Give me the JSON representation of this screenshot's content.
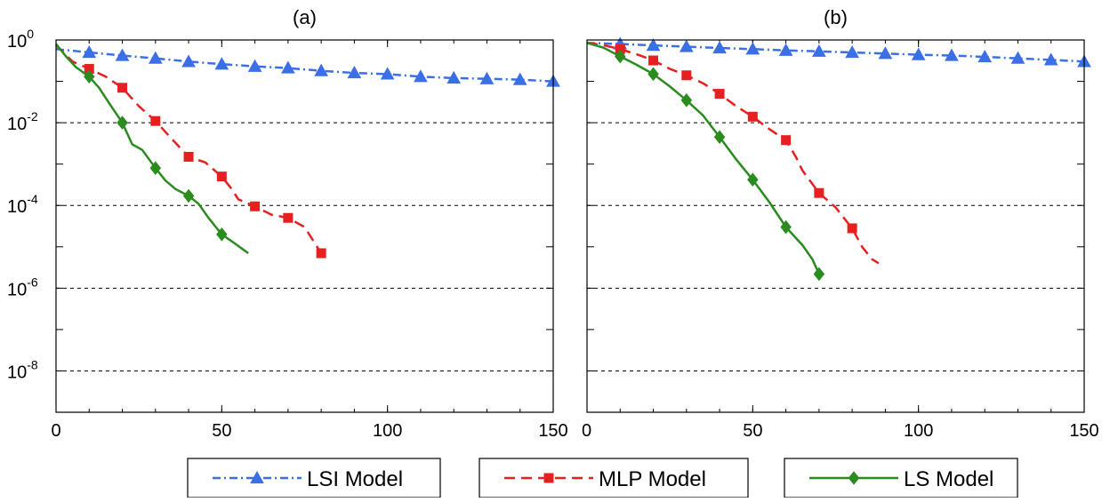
{
  "chart_data": [
    {
      "type": "line",
      "title": "(a)",
      "xlabel": "",
      "ylabel": "",
      "xlim": [
        0,
        150
      ],
      "ylim": [
        1e-09,
        1
      ],
      "yscale": "log",
      "x_ticks": [
        0,
        50,
        100,
        150
      ],
      "x_tick_labels": [
        "0",
        "50",
        "100",
        "150"
      ],
      "y_ticks": [
        1,
        0.01,
        0.0001,
        1e-06,
        1e-08
      ],
      "y_tick_labels": [
        {
          "base": "10",
          "exp": "0"
        },
        {
          "base": "10",
          "exp": "-2"
        },
        {
          "base": "10",
          "exp": "-4"
        },
        {
          "base": "10",
          "exp": "-6"
        },
        {
          "base": "10",
          "exp": "-8"
        }
      ],
      "grid": "horizontal dashed at major y ticks",
      "series": [
        {
          "name": "LSI Model",
          "color": "#3b6fe6",
          "linestyle": "dash-dot",
          "marker": "triangle",
          "x": [
            0,
            10,
            20,
            30,
            40,
            50,
            60,
            70,
            80,
            90,
            100,
            110,
            120,
            130,
            140,
            150
          ],
          "y": [
            0.6,
            0.5,
            0.42,
            0.36,
            0.3,
            0.26,
            0.23,
            0.21,
            0.18,
            0.16,
            0.15,
            0.13,
            0.12,
            0.115,
            0.11,
            0.1
          ],
          "marker_x": [
            10,
            20,
            30,
            40,
            50,
            60,
            70,
            80,
            90,
            100,
            110,
            120,
            130,
            140,
            150
          ],
          "marker_y": [
            0.5,
            0.42,
            0.36,
            0.3,
            0.26,
            0.23,
            0.21,
            0.18,
            0.16,
            0.15,
            0.13,
            0.12,
            0.115,
            0.11,
            0.1
          ]
        },
        {
          "name": "MLP Model",
          "color": "#e62020",
          "linestyle": "dashed",
          "marker": "square",
          "x": [
            0,
            5,
            10,
            15,
            20,
            25,
            30,
            35,
            40,
            45,
            50,
            53,
            55,
            60,
            65,
            70,
            75,
            80
          ],
          "y": [
            0.75,
            0.3,
            0.2,
            0.13,
            0.07,
            0.025,
            0.011,
            0.004,
            0.0015,
            0.0011,
            0.0005,
            0.00025,
            0.00014,
            9.5e-05,
            6e-05,
            5e-05,
            3e-05,
            7e-06
          ],
          "marker_x": [
            10,
            20,
            30,
            40,
            50,
            60,
            70,
            80
          ],
          "marker_y": [
            0.2,
            0.07,
            0.011,
            0.0015,
            0.0005,
            9.5e-05,
            5e-05,
            7e-06
          ]
        },
        {
          "name": "LS Model",
          "color": "#2a8c1e",
          "linestyle": "solid",
          "marker": "diamond",
          "x": [
            0,
            3,
            6,
            10,
            13,
            16,
            20,
            23,
            26,
            30,
            33,
            36,
            40,
            43,
            46,
            50,
            54,
            58
          ],
          "y": [
            0.8,
            0.4,
            0.22,
            0.13,
            0.07,
            0.03,
            0.01,
            0.003,
            0.0022,
            0.0008,
            0.0004,
            0.00025,
            0.00017,
            0.00011,
            5e-05,
            2e-05,
            1.2e-05,
            7e-06
          ],
          "marker_x": [
            10,
            20,
            30,
            40,
            50
          ],
          "marker_y": [
            0.13,
            0.01,
            0.0008,
            0.00017,
            2e-05
          ]
        }
      ]
    },
    {
      "type": "line",
      "title": "(b)",
      "xlabel": "",
      "ylabel": "",
      "xlim": [
        0,
        150
      ],
      "ylim": [
        1e-09,
        1
      ],
      "yscale": "log",
      "x_ticks": [
        0,
        50,
        100,
        150
      ],
      "x_tick_labels": [
        "0",
        "50",
        "100",
        "150"
      ],
      "y_ticks": [
        1,
        0.01,
        0.0001,
        1e-06,
        1e-08
      ],
      "grid": "horizontal dashed at major y ticks",
      "series": [
        {
          "name": "LSI Model",
          "color": "#3b6fe6",
          "linestyle": "dash-dot",
          "marker": "triangle",
          "x": [
            0,
            10,
            20,
            30,
            40,
            50,
            60,
            70,
            80,
            90,
            100,
            110,
            120,
            130,
            140,
            150
          ],
          "y": [
            0.85,
            0.8,
            0.74,
            0.69,
            0.64,
            0.6,
            0.56,
            0.53,
            0.5,
            0.47,
            0.44,
            0.42,
            0.39,
            0.36,
            0.33,
            0.3
          ],
          "marker_x": [
            10,
            20,
            30,
            40,
            50,
            60,
            70,
            80,
            90,
            100,
            110,
            120,
            130,
            140,
            150
          ],
          "marker_y": [
            0.8,
            0.74,
            0.69,
            0.64,
            0.6,
            0.56,
            0.53,
            0.5,
            0.47,
            0.44,
            0.42,
            0.39,
            0.36,
            0.33,
            0.3
          ]
        },
        {
          "name": "MLP Model",
          "color": "#e62020",
          "linestyle": "dashed",
          "marker": "square",
          "x": [
            0,
            5,
            10,
            15,
            20,
            25,
            30,
            35,
            40,
            45,
            50,
            55,
            60,
            63,
            65,
            70,
            75,
            80,
            83,
            86,
            88
          ],
          "y": [
            0.85,
            0.75,
            0.6,
            0.45,
            0.32,
            0.2,
            0.14,
            0.09,
            0.05,
            0.025,
            0.014,
            0.007,
            0.0038,
            0.0015,
            0.0007,
            0.0002,
            9e-05,
            2.8e-05,
            1e-05,
            5e-06,
            4e-06
          ],
          "marker_x": [
            10,
            20,
            30,
            40,
            50,
            60,
            70,
            80
          ],
          "marker_y": [
            0.6,
            0.32,
            0.14,
            0.05,
            0.014,
            0.0038,
            0.0002,
            2.8e-05
          ]
        },
        {
          "name": "LS Model",
          "color": "#2a8c1e",
          "linestyle": "solid",
          "marker": "diamond",
          "x": [
            0,
            5,
            10,
            15,
            20,
            25,
            30,
            35,
            40,
            45,
            50,
            55,
            60,
            65,
            68,
            70
          ],
          "y": [
            0.85,
            0.65,
            0.4,
            0.25,
            0.15,
            0.075,
            0.035,
            0.015,
            0.0045,
            0.0013,
            0.00042,
            0.00012,
            3e-05,
            1.1e-05,
            5e-06,
            2.2e-06
          ],
          "marker_x": [
            10,
            20,
            30,
            40,
            50,
            60,
            70
          ],
          "marker_y": [
            0.4,
            0.15,
            0.035,
            0.0045,
            0.00042,
            3e-05,
            2.2e-06
          ]
        }
      ]
    }
  ],
  "legend": {
    "placement": "bottom",
    "entries": [
      {
        "label": "LSI Model",
        "color": "#3b6fe6",
        "marker": "triangle",
        "linestyle": "dash-dot"
      },
      {
        "label": "MLP Model",
        "color": "#e62020",
        "marker": "square",
        "linestyle": "dashed"
      },
      {
        "label": "LS Model",
        "color": "#2a8c1e",
        "marker": "diamond",
        "linestyle": "solid"
      }
    ]
  }
}
